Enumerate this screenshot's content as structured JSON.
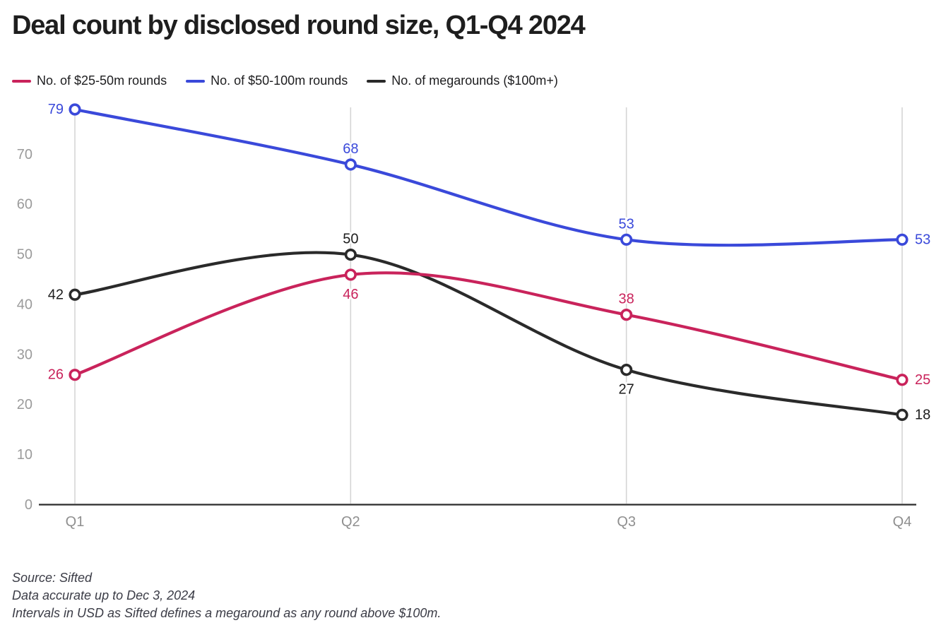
{
  "header": {
    "title": "Deal count by disclosed round size, Q1-Q4 2024"
  },
  "chart_data": {
    "type": "line",
    "title": "Deal count by disclosed round size, Q1-Q4 2024",
    "categories": [
      "Q1",
      "Q2",
      "Q3",
      "Q4"
    ],
    "series": [
      {
        "name": "No. of $25-50m rounds",
        "color": "#c9235b",
        "values": [
          26,
          46,
          38,
          25
        ],
        "label_positions": [
          "left",
          "bottom",
          "top",
          "right"
        ]
      },
      {
        "name": "No. of $50-100m rounds",
        "color": "#3a49da",
        "values": [
          79,
          68,
          53,
          53
        ],
        "label_positions": [
          "left",
          "top",
          "top",
          "right"
        ]
      },
      {
        "name": "No. of megarounds ($100m+)",
        "color": "#2a2a2a",
        "values": [
          42,
          50,
          27,
          18
        ],
        "label_positions": [
          "left",
          "top",
          "bottom",
          "right"
        ],
        "label_color": "#1d1d1d"
      }
    ],
    "xlabel": "",
    "ylabel": "",
    "ylim": [
      0,
      79
    ],
    "yticks": [
      0,
      10,
      20,
      30,
      40,
      50,
      60,
      70
    ],
    "grid": "vertical-only",
    "legend_position": "top-left",
    "marker": "open-circle",
    "curve": "smooth-spline",
    "colors": {
      "axis": "#2b2b2b",
      "gridline": "#d5d5d5",
      "tick_text": "#9b9b9b"
    }
  },
  "footer": {
    "lines": [
      "Source: Sifted",
      "Data accurate up to Dec 3, 2024",
      "Intervals in USD as Sifted defines a megaround as any round above $100m."
    ]
  }
}
